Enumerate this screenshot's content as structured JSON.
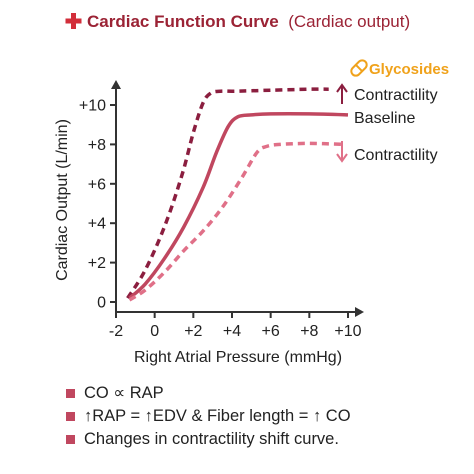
{
  "colors": {
    "title": "#9b2335",
    "icon": "#d22e3a",
    "axis": "#333333",
    "increased": "#8b1e3f",
    "baseline": "#c0475f",
    "decreased": "#e07088",
    "glycosides": "#f0a21b",
    "bullet": "#c0475f"
  },
  "header": {
    "icon": "medical-cross-icon",
    "title": "Cardiac Function Curve",
    "subtitle": "(Cardiac output)"
  },
  "chart_data": {
    "type": "line",
    "title": "Cardiac Function Curve (Cardiac output)",
    "xlabel": "Right Atrial Pressure (mmHg)",
    "ylabel": "Cardiac Output (L/min)",
    "xlim": [
      -2,
      10
    ],
    "ylim": [
      0,
      10
    ],
    "x_ticks": [
      -2,
      0,
      2,
      4,
      6,
      8,
      10
    ],
    "x_tick_labels": [
      "-2",
      "0",
      "+2",
      "+4",
      "+6",
      "+8",
      "+10"
    ],
    "y_ticks": [
      0,
      2,
      4,
      6,
      8,
      10
    ],
    "y_tick_labels": [
      "0",
      "+2",
      "+4",
      "+6",
      "+8",
      "+10"
    ],
    "grid": false,
    "legend_position": "right",
    "series": [
      {
        "name": "Contractility",
        "arrow": "up",
        "style": "dashed",
        "x": [
          -1.4,
          -0.5,
          0.5,
          1.4,
          2.0,
          2.5,
          2.9,
          3.4,
          4.2,
          6.0,
          8.0,
          9.0
        ],
        "y": [
          0.2,
          1.6,
          3.8,
          6.4,
          8.6,
          10.1,
          10.6,
          10.7,
          10.7,
          10.75,
          10.8,
          10.8
        ]
      },
      {
        "name": "Baseline",
        "style": "solid",
        "x": [
          -1.3,
          -0.5,
          0.5,
          1.5,
          2.5,
          3.2,
          3.8,
          4.3,
          5.0,
          6.0,
          8.0,
          10.0
        ],
        "y": [
          0.2,
          0.9,
          2.2,
          3.8,
          5.8,
          7.6,
          8.9,
          9.4,
          9.5,
          9.55,
          9.55,
          9.5
        ]
      },
      {
        "name": "Contractility",
        "arrow": "down",
        "style": "dashed",
        "x": [
          -1.3,
          -0.5,
          0.5,
          1.5,
          2.5,
          3.5,
          4.5,
          5.3,
          5.8,
          6.5,
          8.0,
          9.8
        ],
        "y": [
          0.1,
          0.6,
          1.5,
          2.6,
          3.6,
          4.8,
          6.3,
          7.6,
          7.9,
          8.0,
          8.05,
          8.0
        ]
      }
    ],
    "annotations": [
      "Glycosides"
    ]
  },
  "notes": [
    "CO  ∝ RAP",
    "↑RAP = ↑EDV & Fiber length = ↑ CO",
    "Changes in contractility shift curve."
  ]
}
